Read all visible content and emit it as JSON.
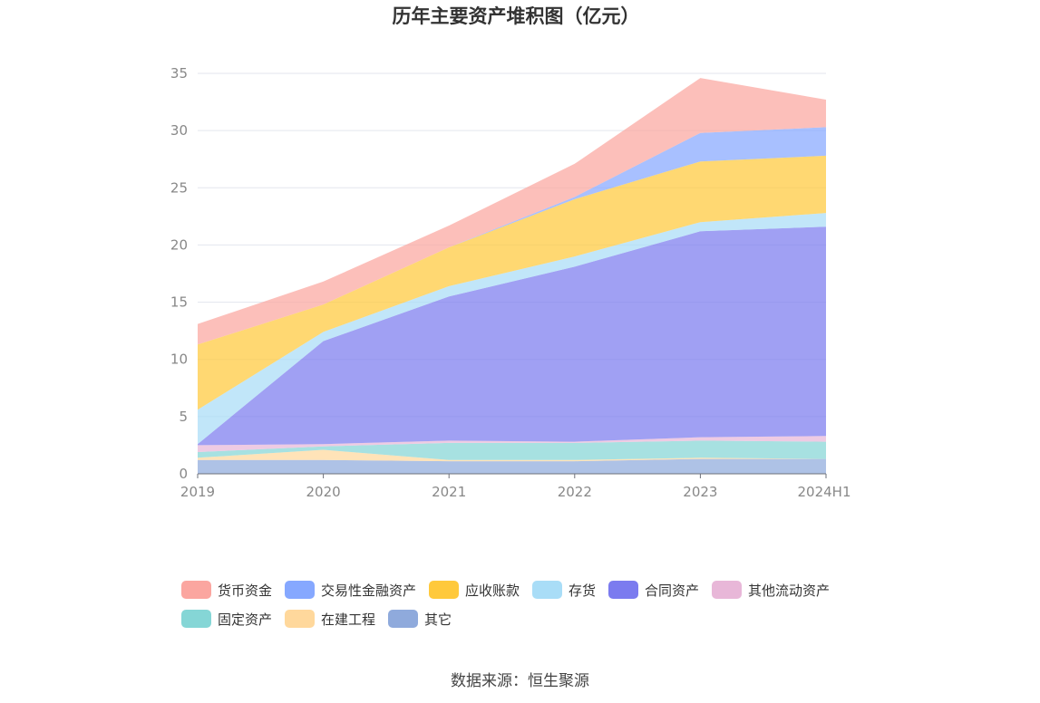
{
  "chart_data": {
    "type": "area",
    "stacked": true,
    "title": "历年主要资产堆积图（亿元）",
    "x": [
      "2019",
      "2020",
      "2021",
      "2022",
      "2023",
      "2024H1"
    ],
    "ylim": [
      0,
      35
    ],
    "yticks": [
      0,
      5,
      10,
      15,
      20,
      25,
      30,
      35
    ],
    "grid": true,
    "legend_position": "bottom",
    "series": [
      {
        "name": "其它",
        "color": "#8FAADC",
        "values": [
          1.2,
          1.2,
          1.1,
          1.1,
          1.3,
          1.3
        ]
      },
      {
        "name": "在建工程",
        "color": "#FFD89C",
        "values": [
          0.2,
          0.9,
          0.1,
          0.1,
          0.1,
          0.0
        ]
      },
      {
        "name": "固定资产",
        "color": "#85D6D6",
        "values": [
          0.5,
          0.3,
          1.5,
          1.5,
          1.5,
          1.5
        ]
      },
      {
        "name": "其他流动资产",
        "color": "#E8B7D8",
        "values": [
          0.6,
          0.2,
          0.2,
          0.1,
          0.3,
          0.5
        ]
      },
      {
        "name": "合同资产",
        "color": "#7B7BEF",
        "values": [
          0.1,
          9.0,
          12.6,
          15.3,
          18.0,
          18.3
        ]
      },
      {
        "name": "存货",
        "color": "#A9DDF7",
        "values": [
          3.0,
          0.8,
          0.9,
          0.9,
          0.8,
          1.2
        ]
      },
      {
        "name": "应收账款",
        "color": "#FFC93C",
        "values": [
          5.7,
          2.4,
          3.4,
          5.0,
          5.3,
          5.0
        ]
      },
      {
        "name": "交易性金融资产",
        "color": "#86A8FF",
        "values": [
          0.0,
          0.0,
          0.0,
          0.2,
          2.5,
          2.5
        ]
      },
      {
        "name": "货币资金",
        "color": "#FBA6A0",
        "values": [
          1.8,
          2.0,
          1.9,
          2.9,
          4.8,
          2.4
        ]
      }
    ]
  },
  "legend": {
    "row1": [
      "货币资金",
      "交易性金融资产",
      "应收账款",
      "存货",
      "合同资产",
      "其他流动资产"
    ],
    "row2": [
      "固定资产",
      "在建工程",
      "其它"
    ]
  },
  "source": "数据来源：恒生聚源"
}
